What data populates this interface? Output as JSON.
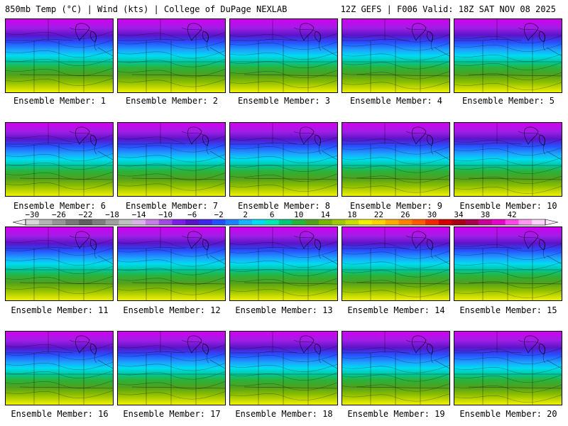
{
  "header": {
    "left": "850mb Temp (°C) | Wind (kts) | College of DuPage NEXLAB",
    "right": "12Z GEFS | F006 Valid: 18Z SAT NOV 08 2025"
  },
  "caption_prefix": "Ensemble Member: ",
  "members": [
    {
      "number": "1"
    },
    {
      "number": "2"
    },
    {
      "number": "3"
    },
    {
      "number": "4"
    },
    {
      "number": "5"
    },
    {
      "number": "6"
    },
    {
      "number": "7"
    },
    {
      "number": "8"
    },
    {
      "number": "9"
    },
    {
      "number": "10"
    },
    {
      "number": "11"
    },
    {
      "number": "12"
    },
    {
      "number": "13"
    },
    {
      "number": "14"
    },
    {
      "number": "15"
    },
    {
      "number": "16"
    },
    {
      "number": "17"
    },
    {
      "number": "18"
    },
    {
      "number": "19"
    },
    {
      "number": "20"
    }
  ],
  "colorbar": {
    "labels": [
      "−30",
      "−26",
      "−22",
      "−18",
      "−14",
      "−10",
      "−6",
      "−2",
      "2",
      "6",
      "10",
      "14",
      "18",
      "22",
      "26",
      "30",
      "34",
      "38",
      "42"
    ],
    "colors": [
      "#d9d9d9",
      "#b4b4b4",
      "#969696",
      "#787878",
      "#5f5f5f",
      "#7d7d7d",
      "#a0a0a0",
      "#c0c0c0",
      "#d8b4e8",
      "#c87de6",
      "#a04be0",
      "#7d1ee6",
      "#5a14c8",
      "#3c28e6",
      "#2050ff",
      "#1e82ff",
      "#18b4ff",
      "#00dcf0",
      "#00e6b4",
      "#00c878",
      "#28b43c",
      "#50a01e",
      "#78b400",
      "#a0c800",
      "#c8dc00",
      "#f0f000",
      "#ffd200",
      "#ffaa00",
      "#ff8200",
      "#ff5a00",
      "#f02800",
      "#d20000",
      "#aa0014",
      "#aa0050",
      "#c80096",
      "#e600c8",
      "#ff46e6",
      "#ff96f0",
      "#ffd2fa"
    ]
  }
}
